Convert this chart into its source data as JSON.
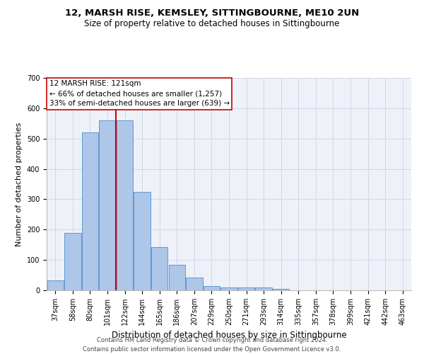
{
  "title1": "12, MARSH RISE, KEMSLEY, SITTINGBOURNE, ME10 2UN",
  "title2": "Size of property relative to detached houses in Sittingbourne",
  "xlabel": "Distribution of detached houses by size in Sittingbourne",
  "ylabel": "Number of detached properties",
  "categories": [
    "37sqm",
    "58sqm",
    "80sqm",
    "101sqm",
    "122sqm",
    "144sqm",
    "165sqm",
    "186sqm",
    "207sqm",
    "229sqm",
    "250sqm",
    "271sqm",
    "293sqm",
    "314sqm",
    "335sqm",
    "357sqm",
    "378sqm",
    "399sqm",
    "421sqm",
    "442sqm",
    "463sqm"
  ],
  "values": [
    33,
    190,
    520,
    560,
    560,
    325,
    143,
    85,
    42,
    13,
    10,
    10,
    10,
    5,
    0,
    0,
    0,
    0,
    0,
    0,
    0
  ],
  "bar_color": "#aec6e8",
  "bar_edge_color": "#5b9bd5",
  "annotation_line1": "12 MARSH RISE: 121sqm",
  "annotation_line2": "← 66% of detached houses are smaller (1,257)",
  "annotation_line3": "33% of semi-detached houses are larger (639) →",
  "vline_color": "#cc0000",
  "annotation_box_edge_color": "#cc0000",
  "footer1": "Contains HM Land Registry data © Crown copyright and database right 2024.",
  "footer2": "Contains public sector information licensed under the Open Government Licence v3.0.",
  "ylim": [
    0,
    700
  ],
  "yticks": [
    0,
    100,
    200,
    300,
    400,
    500,
    600,
    700
  ],
  "grid_color": "#d0d8e8",
  "bg_color": "#eef2f8",
  "title1_fontsize": 9.5,
  "title2_fontsize": 8.5,
  "ylabel_fontsize": 8,
  "xlabel_fontsize": 8.5,
  "tick_fontsize": 7,
  "footer_fontsize": 6,
  "annotation_fontsize": 7.5
}
